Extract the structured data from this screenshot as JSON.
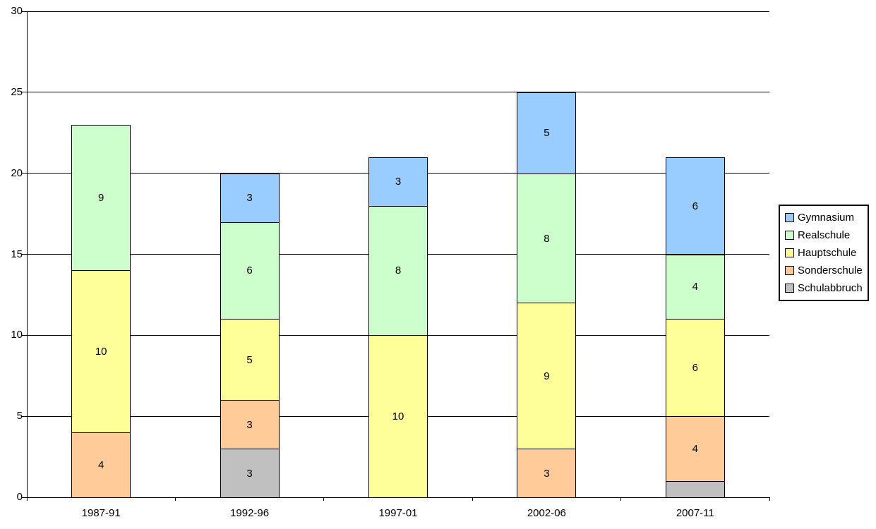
{
  "chart_data": {
    "type": "bar",
    "stacked": true,
    "title": "",
    "categories": [
      "1987-91",
      "1992-96",
      "1997-01",
      "2002-06",
      "2007-11"
    ],
    "series": [
      {
        "name": "Gymnasium",
        "color": "#99CCFF",
        "values": [
          0,
          3,
          3,
          5,
          6
        ]
      },
      {
        "name": "Realschule",
        "color": "#CCFFCC",
        "values": [
          9,
          6,
          8,
          8,
          4
        ]
      },
      {
        "name": "Hauptschule",
        "color": "#FFFF99",
        "values": [
          10,
          5,
          10,
          9,
          6
        ]
      },
      {
        "name": "Sonderschule",
        "color": "#FFCC99",
        "values": [
          4,
          3,
          0,
          3,
          4
        ]
      },
      {
        "name": "Schulabbruch",
        "color": "#C0C0C0",
        "values": [
          0,
          3,
          0,
          0,
          1
        ]
      }
    ],
    "stack_order_bottom_to_top": [
      "Schulabbruch",
      "Sonderschule",
      "Hauptschule",
      "Realschule",
      "Gymnasium"
    ],
    "bar_totals": [
      23,
      20,
      21,
      25,
      21
    ],
    "ylim": [
      0,
      30
    ],
    "yticks": [
      0,
      5,
      10,
      15,
      20,
      25,
      30
    ],
    "grid": true,
    "legend_position": "right",
    "legend_entries": [
      "Gymnasium",
      "Realschule",
      "Hauptschule",
      "Sonderschule",
      "Schulabbruch"
    ],
    "axis_color": "#000000",
    "segment_label_color": "#000000",
    "unlabeled_segments": [
      {
        "category": "2007-11",
        "series": "Schulabbruch",
        "value": 1
      }
    ]
  }
}
